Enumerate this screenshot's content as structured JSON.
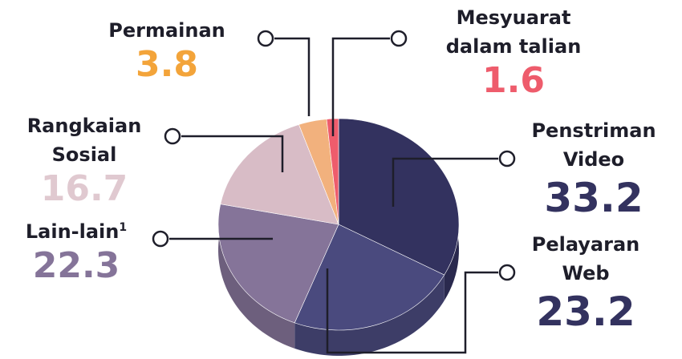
{
  "chart_data": {
    "type": "pie3d",
    "categories": [
      "Penstriman Video",
      "Pelayaran Web",
      "Lain-lain",
      "Rangkaian Sosial",
      "Permainan",
      "Mesyuarat dalam talian"
    ],
    "values": [
      33.2,
      23.2,
      22.3,
      16.7,
      3.8,
      1.6
    ],
    "colors": [
      "#33325f",
      "#4a4a7e",
      "#857499",
      "#d8bcc6",
      "#f2b17d",
      "#ee5c6c"
    ],
    "label_colors": [
      "#33325f",
      "#33325f",
      "#857499",
      "#e0c9d0",
      "#f3a43a",
      "#ee5c6c"
    ],
    "footnote_mark": "1"
  }
}
